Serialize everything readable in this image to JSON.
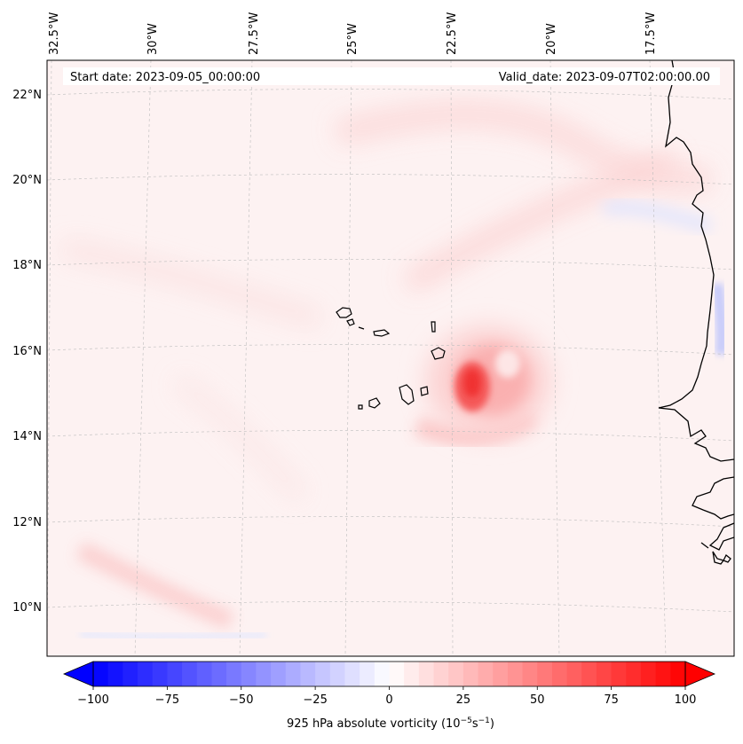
{
  "map": {
    "start_label": "Start date: 2023-09-05_00:00:00",
    "valid_label": "Valid_date: 2023-09-07T02:00:00.00",
    "lon_ticks": [
      {
        "lon": -32.5,
        "label": "32.5°W"
      },
      {
        "lon": -30.0,
        "label": "30°W"
      },
      {
        "lon": -27.5,
        "label": "27.5°W"
      },
      {
        "lon": -25.0,
        "label": "25°W"
      },
      {
        "lon": -22.5,
        "label": "22.5°W"
      },
      {
        "lon": -20.0,
        "label": "20°W"
      },
      {
        "lon": -17.5,
        "label": "17.5°W"
      }
    ],
    "lat_ticks": [
      {
        "lat": 22,
        "label": "22°N"
      },
      {
        "lat": 20,
        "label": "20°N"
      },
      {
        "lat": 18,
        "label": "18°N"
      },
      {
        "lat": 16,
        "label": "16°N"
      },
      {
        "lat": 14,
        "label": "14°N"
      },
      {
        "lat": 12,
        "label": "12°N"
      },
      {
        "lat": 10,
        "label": "10°N"
      }
    ],
    "features": {
      "vortex_center": {
        "lon": -21.9,
        "lat": 15.1,
        "peak_vorticity": 70
      },
      "coastline": "West Africa (Senegal / Mauritania)",
      "islands": "Cape Verde"
    }
  },
  "colorbar": {
    "min": -100,
    "max": 100,
    "step": 5,
    "ticks": [
      {
        "value": -100,
        "label": "−100"
      },
      {
        "value": -75,
        "label": "−75"
      },
      {
        "value": -50,
        "label": "−50"
      },
      {
        "value": -25,
        "label": "−25"
      },
      {
        "value": 0,
        "label": "0"
      },
      {
        "value": 25,
        "label": "25"
      },
      {
        "value": 50,
        "label": "50"
      },
      {
        "value": 75,
        "label": "75"
      },
      {
        "value": 100,
        "label": "100"
      }
    ],
    "label_main": "925 hPa absolute vorticity (10",
    "label_sup1": "−5",
    "label_mid": "s",
    "label_sup2": "−1",
    "label_end": ")",
    "colors": {
      "neg": "#0000ff",
      "zero": "#ffffff",
      "pos": "#ff0000"
    }
  }
}
